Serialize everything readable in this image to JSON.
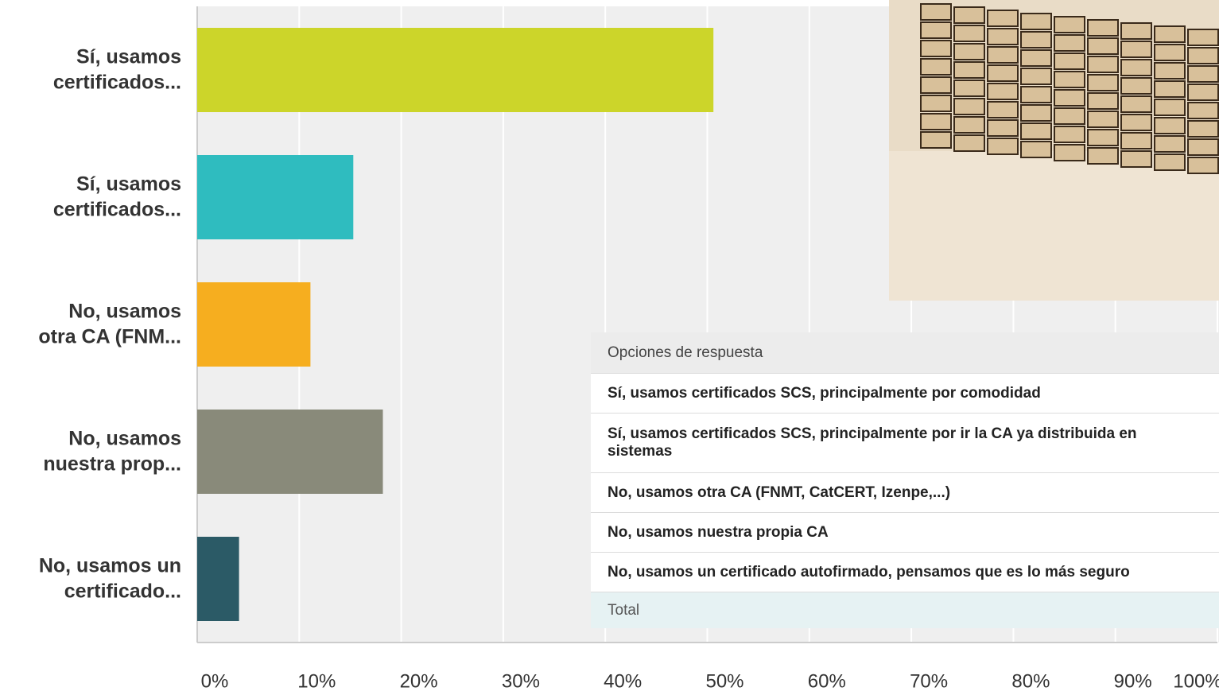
{
  "chart_data": {
    "type": "bar",
    "orientation": "horizontal",
    "categories": [
      [
        "Sí, usamos",
        "certificados..."
      ],
      [
        "Sí, usamos",
        "certificados..."
      ],
      [
        "No, usamos",
        "otra CA (FNM..."
      ],
      [
        "No, usamos",
        "nuestra prop..."
      ],
      [
        "No, usamos un",
        "certificado..."
      ]
    ],
    "values": [
      50.6,
      15.3,
      11.1,
      18.2,
      4.1
    ],
    "colors": [
      "#ccd52a",
      "#2fbcbf",
      "#f6ae1f",
      "#898a7a",
      "#2b5a66"
    ],
    "xlim": [
      0,
      100
    ],
    "xticks": [
      {
        "value": 0,
        "label": "0%"
      },
      {
        "value": 10,
        "label": "10%"
      },
      {
        "value": 20,
        "label": "20%"
      },
      {
        "value": 30,
        "label": "30%"
      },
      {
        "value": 40,
        "label": "40%"
      },
      {
        "value": 50,
        "label": "50%"
      },
      {
        "value": 60,
        "label": "60%"
      },
      {
        "value": 70,
        "label": "70%"
      },
      {
        "value": 80,
        "label": "80%"
      },
      {
        "value": 90,
        "label": "90%"
      },
      {
        "value": 100,
        "label": "100%"
      }
    ],
    "grid": true
  },
  "table": {
    "header": "Opciones de respuesta",
    "rows": [
      [
        "Sí, usamos certificados SCS, principalmente por comodidad"
      ],
      [
        "Sí, usamos certificados SCS, principalmente por ir la CA ya distribuida en",
        "sistemas"
      ],
      [
        "No, usamos otra CA (FNMT, CatCERT, Izenpe,...)"
      ],
      [
        "No, usamos nuestra propia CA"
      ],
      [
        "No, usamos un certificado autofirmado, pensamos que es lo más seguro"
      ]
    ],
    "total": "Total"
  }
}
